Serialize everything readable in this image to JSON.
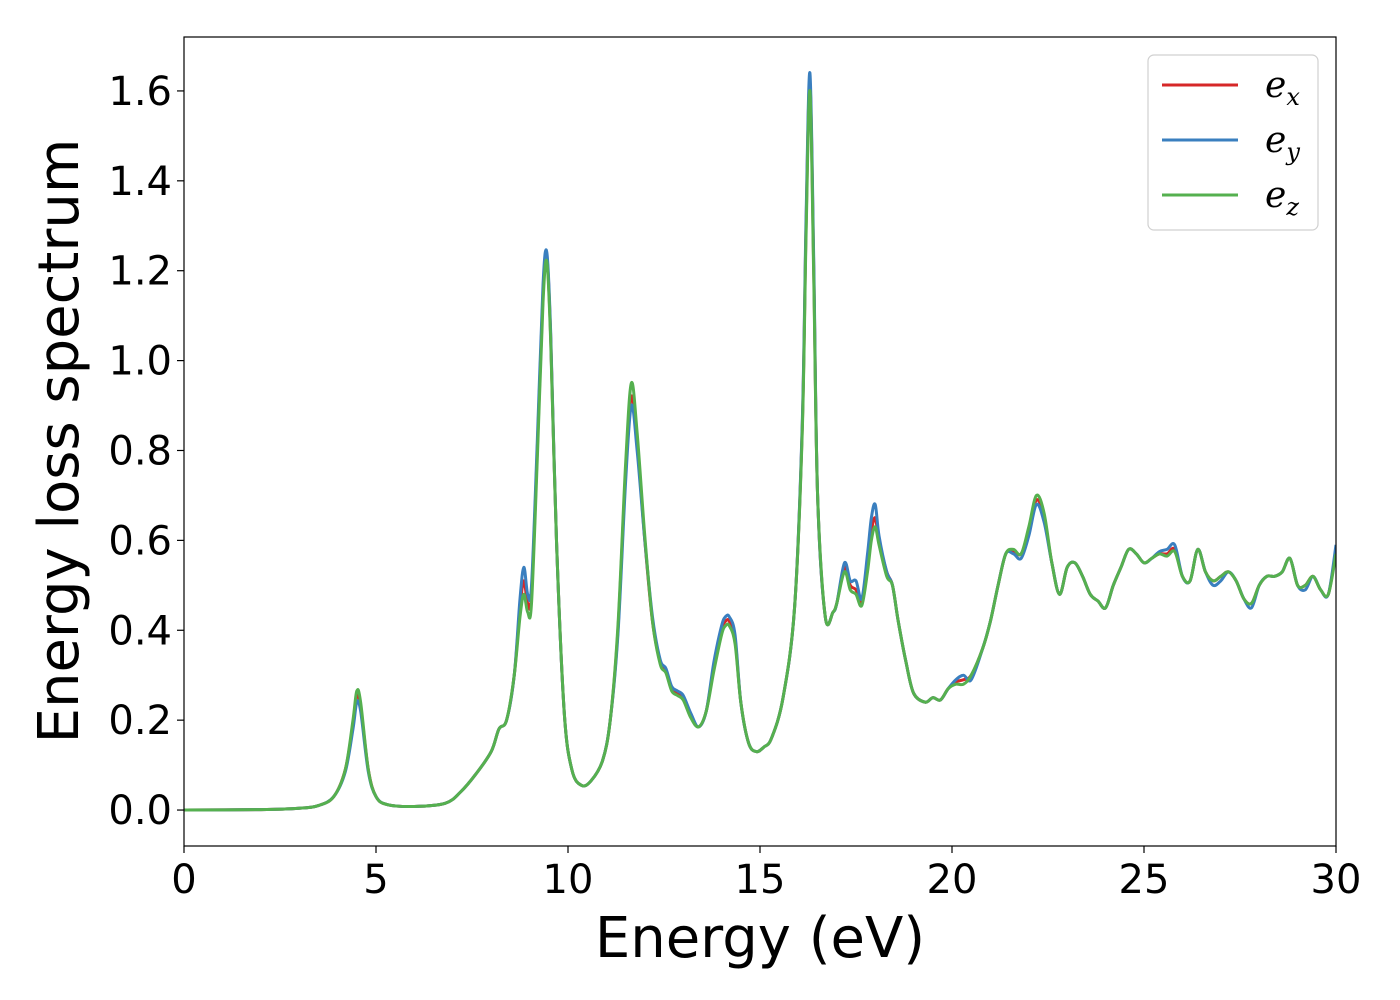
{
  "chart_data": {
    "type": "line",
    "title": "",
    "xlabel": "Energy (eV)",
    "ylabel": "Energy loss spectrum",
    "xlim": [
      0,
      30
    ],
    "ylim": [
      -0.08,
      1.72
    ],
    "xticks": [
      0,
      5,
      10,
      15,
      20,
      25,
      30
    ],
    "xtick_labels": [
      "0",
      "5",
      "10",
      "15",
      "20",
      "25",
      "30"
    ],
    "yticks": [
      0.0,
      0.2,
      0.4,
      0.6,
      0.8,
      1.0,
      1.2,
      1.4,
      1.6
    ],
    "ytick_labels": [
      "0.0",
      "0.2",
      "0.4",
      "0.6",
      "0.8",
      "1.0",
      "1.2",
      "1.4",
      "1.6"
    ],
    "grid": false,
    "legend_position": "top-right",
    "colors": {
      "e_x": "#d62728",
      "e_y": "#3a7fbf",
      "e_z": "#55b04f"
    },
    "x": [
      0,
      2,
      3,
      3.5,
      3.9,
      4.2,
      4.4,
      4.5,
      4.6,
      4.8,
      5.0,
      5.3,
      6.0,
      6.8,
      7.2,
      7.6,
      8.0,
      8.2,
      8.4,
      8.6,
      8.75,
      8.85,
      8.95,
      9.05,
      9.2,
      9.35,
      9.45,
      9.55,
      9.7,
      9.9,
      10.1,
      10.35,
      10.6,
      10.9,
      11.1,
      11.3,
      11.5,
      11.65,
      11.8,
      12.0,
      12.2,
      12.4,
      12.55,
      12.7,
      12.85,
      13.0,
      13.2,
      13.4,
      13.6,
      13.8,
      14.0,
      14.1,
      14.2,
      14.35,
      14.5,
      14.7,
      14.9,
      15.1,
      15.3,
      15.6,
      15.9,
      16.1,
      16.2,
      16.3,
      16.4,
      16.5,
      16.7,
      16.9,
      17.0,
      17.2,
      17.35,
      17.5,
      17.65,
      17.8,
      17.9,
      18.0,
      18.1,
      18.3,
      18.45,
      18.6,
      18.8,
      19.0,
      19.3,
      19.5,
      19.7,
      19.9,
      20.1,
      20.3,
      20.5,
      20.8,
      21.0,
      21.2,
      21.4,
      21.6,
      21.8,
      22.0,
      22.2,
      22.4,
      22.6,
      22.8,
      23.0,
      23.2,
      23.4,
      23.6,
      23.8,
      24.0,
      24.2,
      24.4,
      24.6,
      24.8,
      25.0,
      25.2,
      25.4,
      25.6,
      25.8,
      26.0,
      26.2,
      26.4,
      26.6,
      26.8,
      27.0,
      27.2,
      27.4,
      27.6,
      27.8,
      28.0,
      28.2,
      28.4,
      28.6,
      28.8,
      29.0,
      29.2,
      29.4,
      29.6,
      29.8,
      30.0
    ],
    "series": [
      {
        "name": "e_x",
        "values": [
          0.0,
          0.001,
          0.004,
          0.01,
          0.03,
          0.09,
          0.19,
          0.255,
          0.23,
          0.09,
          0.03,
          0.012,
          0.008,
          0.015,
          0.04,
          0.08,
          0.13,
          0.18,
          0.2,
          0.3,
          0.45,
          0.51,
          0.46,
          0.48,
          0.8,
          1.15,
          1.23,
          1.05,
          0.6,
          0.22,
          0.09,
          0.055,
          0.065,
          0.11,
          0.2,
          0.4,
          0.75,
          0.92,
          0.82,
          0.6,
          0.42,
          0.33,
          0.31,
          0.27,
          0.26,
          0.25,
          0.21,
          0.185,
          0.22,
          0.32,
          0.4,
          0.42,
          0.42,
          0.38,
          0.24,
          0.15,
          0.13,
          0.14,
          0.16,
          0.25,
          0.45,
          0.85,
          1.3,
          1.62,
          1.2,
          0.7,
          0.43,
          0.44,
          0.46,
          0.54,
          0.5,
          0.49,
          0.46,
          0.55,
          0.62,
          0.65,
          0.6,
          0.53,
          0.5,
          0.42,
          0.33,
          0.26,
          0.24,
          0.25,
          0.245,
          0.27,
          0.285,
          0.29,
          0.3,
          0.36,
          0.42,
          0.5,
          0.57,
          0.575,
          0.57,
          0.62,
          0.69,
          0.65,
          0.55,
          0.48,
          0.54,
          0.55,
          0.52,
          0.48,
          0.465,
          0.45,
          0.5,
          0.54,
          0.58,
          0.57,
          0.55,
          0.56,
          0.57,
          0.57,
          0.58,
          0.52,
          0.51,
          0.58,
          0.53,
          0.51,
          0.52,
          0.53,
          0.51,
          0.47,
          0.46,
          0.5,
          0.52,
          0.52,
          0.53,
          0.56,
          0.5,
          0.5,
          0.52,
          0.49,
          0.48,
          0.58
        ]
      },
      {
        "name": "e_y",
        "values": [
          0.0,
          0.001,
          0.004,
          0.01,
          0.03,
          0.085,
          0.18,
          0.24,
          0.22,
          0.085,
          0.03,
          0.012,
          0.008,
          0.015,
          0.04,
          0.08,
          0.13,
          0.18,
          0.2,
          0.3,
          0.47,
          0.54,
          0.48,
          0.5,
          0.82,
          1.17,
          1.24,
          1.06,
          0.6,
          0.22,
          0.09,
          0.055,
          0.065,
          0.11,
          0.2,
          0.39,
          0.73,
          0.9,
          0.8,
          0.6,
          0.43,
          0.335,
          0.315,
          0.275,
          0.265,
          0.255,
          0.215,
          0.185,
          0.22,
          0.33,
          0.41,
          0.43,
          0.43,
          0.39,
          0.24,
          0.15,
          0.13,
          0.14,
          0.16,
          0.25,
          0.45,
          0.86,
          1.32,
          1.64,
          1.22,
          0.7,
          0.43,
          0.44,
          0.46,
          0.55,
          0.51,
          0.51,
          0.47,
          0.57,
          0.65,
          0.68,
          0.61,
          0.53,
          0.5,
          0.42,
          0.33,
          0.26,
          0.24,
          0.25,
          0.245,
          0.27,
          0.29,
          0.3,
          0.29,
          0.36,
          0.42,
          0.5,
          0.57,
          0.57,
          0.56,
          0.61,
          0.68,
          0.64,
          0.55,
          0.48,
          0.54,
          0.55,
          0.52,
          0.48,
          0.465,
          0.45,
          0.5,
          0.54,
          0.58,
          0.57,
          0.55,
          0.56,
          0.575,
          0.58,
          0.59,
          0.52,
          0.51,
          0.58,
          0.53,
          0.5,
          0.51,
          0.53,
          0.51,
          0.47,
          0.45,
          0.5,
          0.52,
          0.52,
          0.53,
          0.56,
          0.5,
          0.49,
          0.52,
          0.49,
          0.48,
          0.59
        ]
      },
      {
        "name": "e_z",
        "values": [
          0.0,
          0.001,
          0.004,
          0.01,
          0.03,
          0.09,
          0.2,
          0.265,
          0.24,
          0.09,
          0.03,
          0.012,
          0.008,
          0.015,
          0.04,
          0.08,
          0.13,
          0.18,
          0.2,
          0.3,
          0.43,
          0.48,
          0.44,
          0.46,
          0.78,
          1.13,
          1.22,
          1.04,
          0.6,
          0.22,
          0.09,
          0.055,
          0.065,
          0.11,
          0.2,
          0.41,
          0.77,
          0.95,
          0.84,
          0.61,
          0.42,
          0.325,
          0.305,
          0.265,
          0.255,
          0.245,
          0.205,
          0.185,
          0.22,
          0.31,
          0.39,
          0.41,
          0.41,
          0.37,
          0.24,
          0.15,
          0.13,
          0.14,
          0.16,
          0.25,
          0.45,
          0.84,
          1.28,
          1.6,
          1.18,
          0.7,
          0.43,
          0.44,
          0.46,
          0.53,
          0.49,
          0.48,
          0.455,
          0.53,
          0.6,
          0.63,
          0.59,
          0.52,
          0.5,
          0.42,
          0.33,
          0.26,
          0.24,
          0.25,
          0.245,
          0.27,
          0.28,
          0.28,
          0.3,
          0.36,
          0.42,
          0.5,
          0.57,
          0.58,
          0.57,
          0.63,
          0.7,
          0.66,
          0.55,
          0.48,
          0.54,
          0.55,
          0.52,
          0.48,
          0.465,
          0.45,
          0.5,
          0.54,
          0.58,
          0.57,
          0.55,
          0.56,
          0.57,
          0.565,
          0.575,
          0.52,
          0.51,
          0.58,
          0.53,
          0.51,
          0.52,
          0.53,
          0.51,
          0.47,
          0.46,
          0.5,
          0.52,
          0.52,
          0.53,
          0.56,
          0.5,
          0.5,
          0.52,
          0.49,
          0.48,
          0.57
        ]
      }
    ],
    "legend": [
      {
        "base": "e",
        "sub": "x",
        "series": "e_x"
      },
      {
        "base": "e",
        "sub": "y",
        "series": "e_y"
      },
      {
        "base": "e",
        "sub": "z",
        "series": "e_z"
      }
    ]
  }
}
